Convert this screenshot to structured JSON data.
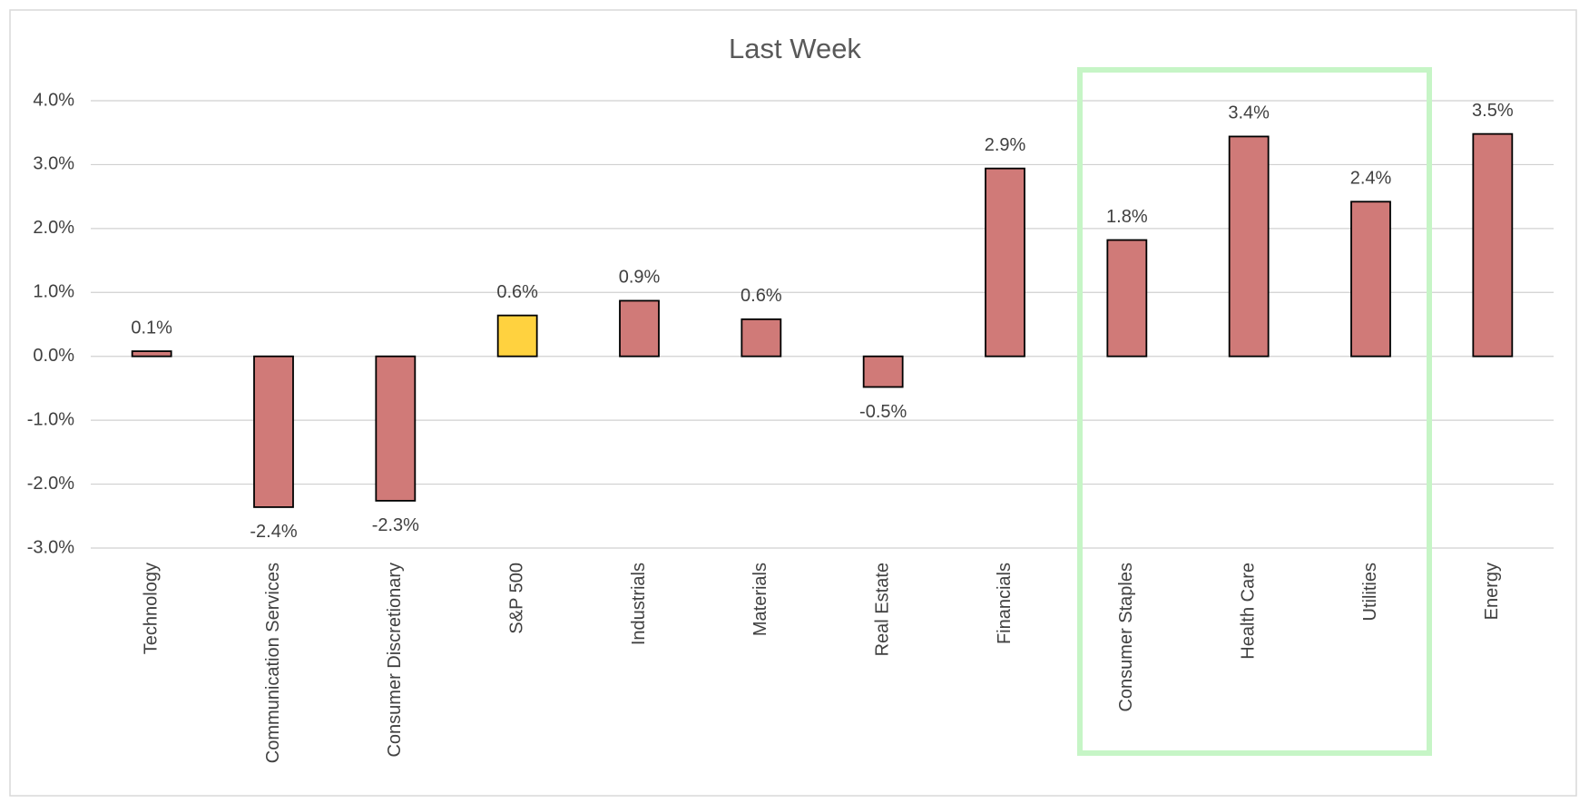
{
  "chart_data": {
    "type": "bar",
    "title": "Last Week",
    "categories": [
      "Technology",
      "Communication Services",
      "Consumer Discretionary",
      "S&P 500",
      "Industrials",
      "Materials",
      "Real Estate",
      "Financials",
      "Consumer Staples",
      "Health Care",
      "Utilities",
      "Energy"
    ],
    "values": [
      0.08,
      -2.36,
      -2.26,
      0.64,
      0.87,
      0.58,
      -0.48,
      2.94,
      1.82,
      3.44,
      2.42,
      3.48
    ],
    "value_labels": [
      "0.1%",
      "-2.4%",
      "-2.3%",
      "0.6%",
      "0.9%",
      "0.6%",
      "-0.5%",
      "2.9%",
      "1.8%",
      "3.4%",
      "2.4%",
      "3.5%"
    ],
    "colors": [
      "#d07a78",
      "#d07a78",
      "#d07a78",
      "#ffd23f",
      "#d07a78",
      "#d07a78",
      "#d07a78",
      "#d07a78",
      "#d07a78",
      "#d07a78",
      "#d07a78",
      "#d07a78"
    ],
    "ylim": [
      -3,
      4
    ],
    "yticks": [
      {
        "value": -3,
        "label": "-3.0%"
      },
      {
        "value": -2,
        "label": "-2.0%"
      },
      {
        "value": -1,
        "label": "-1.0%"
      },
      {
        "value": 0,
        "label": "0.0%"
      },
      {
        "value": 1,
        "label": "1.0%"
      },
      {
        "value": 2,
        "label": "2.0%"
      },
      {
        "value": 3,
        "label": "3.0%"
      },
      {
        "value": 4,
        "label": "4.0%"
      }
    ],
    "grid": true
  }
}
